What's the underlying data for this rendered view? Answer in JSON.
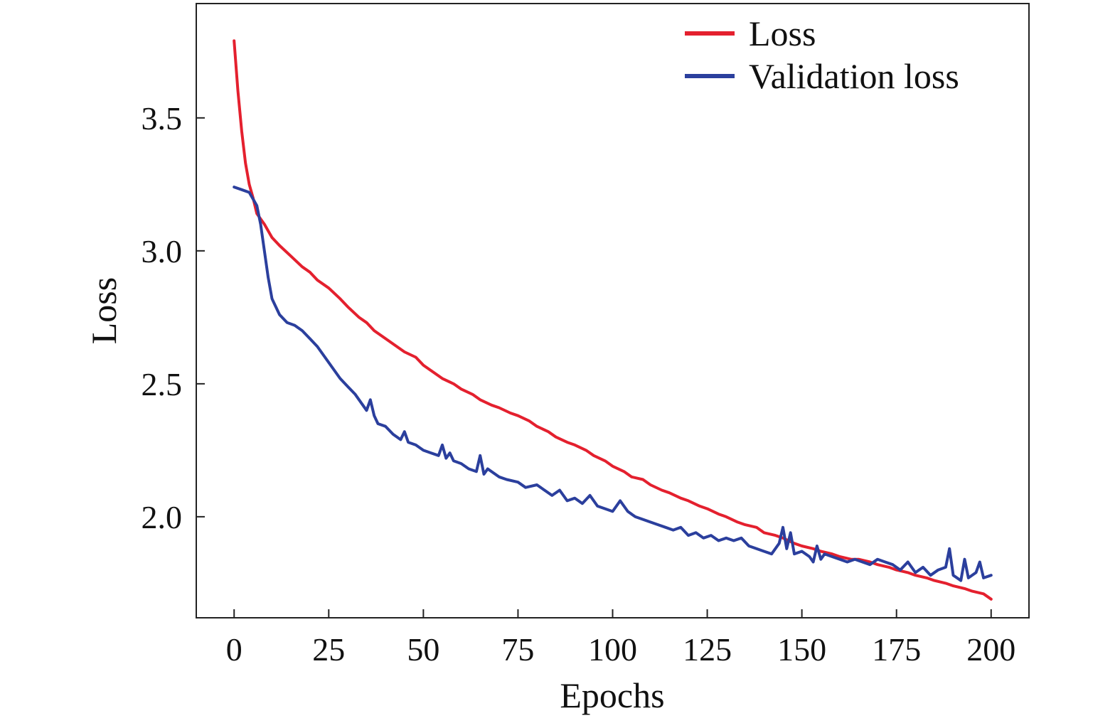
{
  "chart_data": {
    "type": "line",
    "title": "",
    "xlabel": "Epochs",
    "ylabel": "Loss",
    "xlim": [
      -10,
      210
    ],
    "ylim": [
      1.62,
      3.93
    ],
    "xticks": [
      0,
      25,
      50,
      75,
      100,
      125,
      150,
      175,
      200
    ],
    "yticks": [
      2.0,
      2.5,
      3.0,
      3.5
    ],
    "xtick_labels": [
      "0",
      "25",
      "50",
      "75",
      "100",
      "125",
      "150",
      "175",
      "200"
    ],
    "ytick_labels": [
      "2.0",
      "2.5",
      "3.0",
      "3.5"
    ],
    "grid": false,
    "legend_position": "top-right",
    "series": [
      {
        "name": "Loss",
        "color": "#e4202e",
        "x": [
          0,
          1,
          2,
          3,
          4,
          5,
          6,
          8,
          10,
          12,
          15,
          18,
          20,
          22,
          25,
          28,
          30,
          33,
          35,
          37,
          40,
          43,
          45,
          48,
          50,
          53,
          55,
          58,
          60,
          63,
          65,
          68,
          70,
          73,
          75,
          78,
          80,
          83,
          85,
          88,
          90,
          93,
          95,
          98,
          100,
          103,
          105,
          108,
          110,
          113,
          115,
          118,
          120,
          123,
          125,
          128,
          130,
          133,
          135,
          138,
          140,
          143,
          145,
          148,
          150,
          153,
          155,
          158,
          160,
          163,
          165,
          168,
          170,
          173,
          175,
          178,
          180,
          183,
          185,
          188,
          190,
          193,
          195,
          198,
          200
        ],
        "values": [
          3.79,
          3.6,
          3.45,
          3.33,
          3.25,
          3.2,
          3.14,
          3.1,
          3.05,
          3.02,
          2.98,
          2.94,
          2.92,
          2.89,
          2.86,
          2.82,
          2.79,
          2.75,
          2.73,
          2.7,
          2.67,
          2.64,
          2.62,
          2.6,
          2.57,
          2.54,
          2.52,
          2.5,
          2.48,
          2.46,
          2.44,
          2.42,
          2.41,
          2.39,
          2.38,
          2.36,
          2.34,
          2.32,
          2.3,
          2.28,
          2.27,
          2.25,
          2.23,
          2.21,
          2.19,
          2.17,
          2.15,
          2.14,
          2.12,
          2.1,
          2.09,
          2.07,
          2.06,
          2.04,
          2.03,
          2.01,
          2.0,
          1.98,
          1.97,
          1.96,
          1.94,
          1.93,
          1.92,
          1.9,
          1.89,
          1.88,
          1.87,
          1.86,
          1.85,
          1.84,
          1.84,
          1.83,
          1.82,
          1.81,
          1.8,
          1.79,
          1.78,
          1.77,
          1.76,
          1.75,
          1.74,
          1.73,
          1.72,
          1.71,
          1.69
        ]
      },
      {
        "name": "Validation loss",
        "color": "#2b3f9d",
        "x": [
          0,
          2,
          4,
          6,
          7,
          8,
          9,
          10,
          12,
          14,
          16,
          18,
          20,
          22,
          24,
          26,
          28,
          30,
          32,
          34,
          35,
          36,
          37,
          38,
          40,
          42,
          44,
          45,
          46,
          48,
          50,
          52,
          54,
          55,
          56,
          57,
          58,
          60,
          62,
          64,
          65,
          66,
          67,
          70,
          72,
          75,
          77,
          80,
          82,
          84,
          86,
          88,
          90,
          92,
          94,
          96,
          98,
          100,
          102,
          104,
          106,
          108,
          110,
          112,
          114,
          116,
          118,
          120,
          122,
          124,
          126,
          128,
          130,
          132,
          134,
          136,
          138,
          140,
          142,
          144,
          145,
          146,
          147,
          148,
          150,
          152,
          153,
          154,
          155,
          156,
          158,
          160,
          162,
          164,
          166,
          168,
          170,
          172,
          174,
          176,
          178,
          180,
          182,
          184,
          186,
          188,
          189,
          190,
          192,
          193,
          194,
          196,
          197,
          198,
          200
        ],
        "values": [
          3.24,
          3.23,
          3.22,
          3.17,
          3.1,
          3.0,
          2.9,
          2.82,
          2.76,
          2.73,
          2.72,
          2.7,
          2.67,
          2.64,
          2.6,
          2.56,
          2.52,
          2.49,
          2.46,
          2.42,
          2.4,
          2.44,
          2.38,
          2.35,
          2.34,
          2.31,
          2.29,
          2.32,
          2.28,
          2.27,
          2.25,
          2.24,
          2.23,
          2.27,
          2.22,
          2.24,
          2.21,
          2.2,
          2.18,
          2.17,
          2.23,
          2.16,
          2.18,
          2.15,
          2.14,
          2.13,
          2.11,
          2.12,
          2.1,
          2.08,
          2.1,
          2.06,
          2.07,
          2.05,
          2.08,
          2.04,
          2.03,
          2.02,
          2.06,
          2.02,
          2.0,
          1.99,
          1.98,
          1.97,
          1.96,
          1.95,
          1.96,
          1.93,
          1.94,
          1.92,
          1.93,
          1.91,
          1.92,
          1.91,
          1.92,
          1.89,
          1.88,
          1.87,
          1.86,
          1.9,
          1.96,
          1.88,
          1.94,
          1.86,
          1.87,
          1.85,
          1.83,
          1.89,
          1.84,
          1.86,
          1.85,
          1.84,
          1.83,
          1.84,
          1.83,
          1.82,
          1.84,
          1.83,
          1.82,
          1.8,
          1.83,
          1.79,
          1.81,
          1.78,
          1.8,
          1.81,
          1.88,
          1.78,
          1.76,
          1.84,
          1.77,
          1.79,
          1.83,
          1.77,
          1.78
        ]
      }
    ]
  }
}
